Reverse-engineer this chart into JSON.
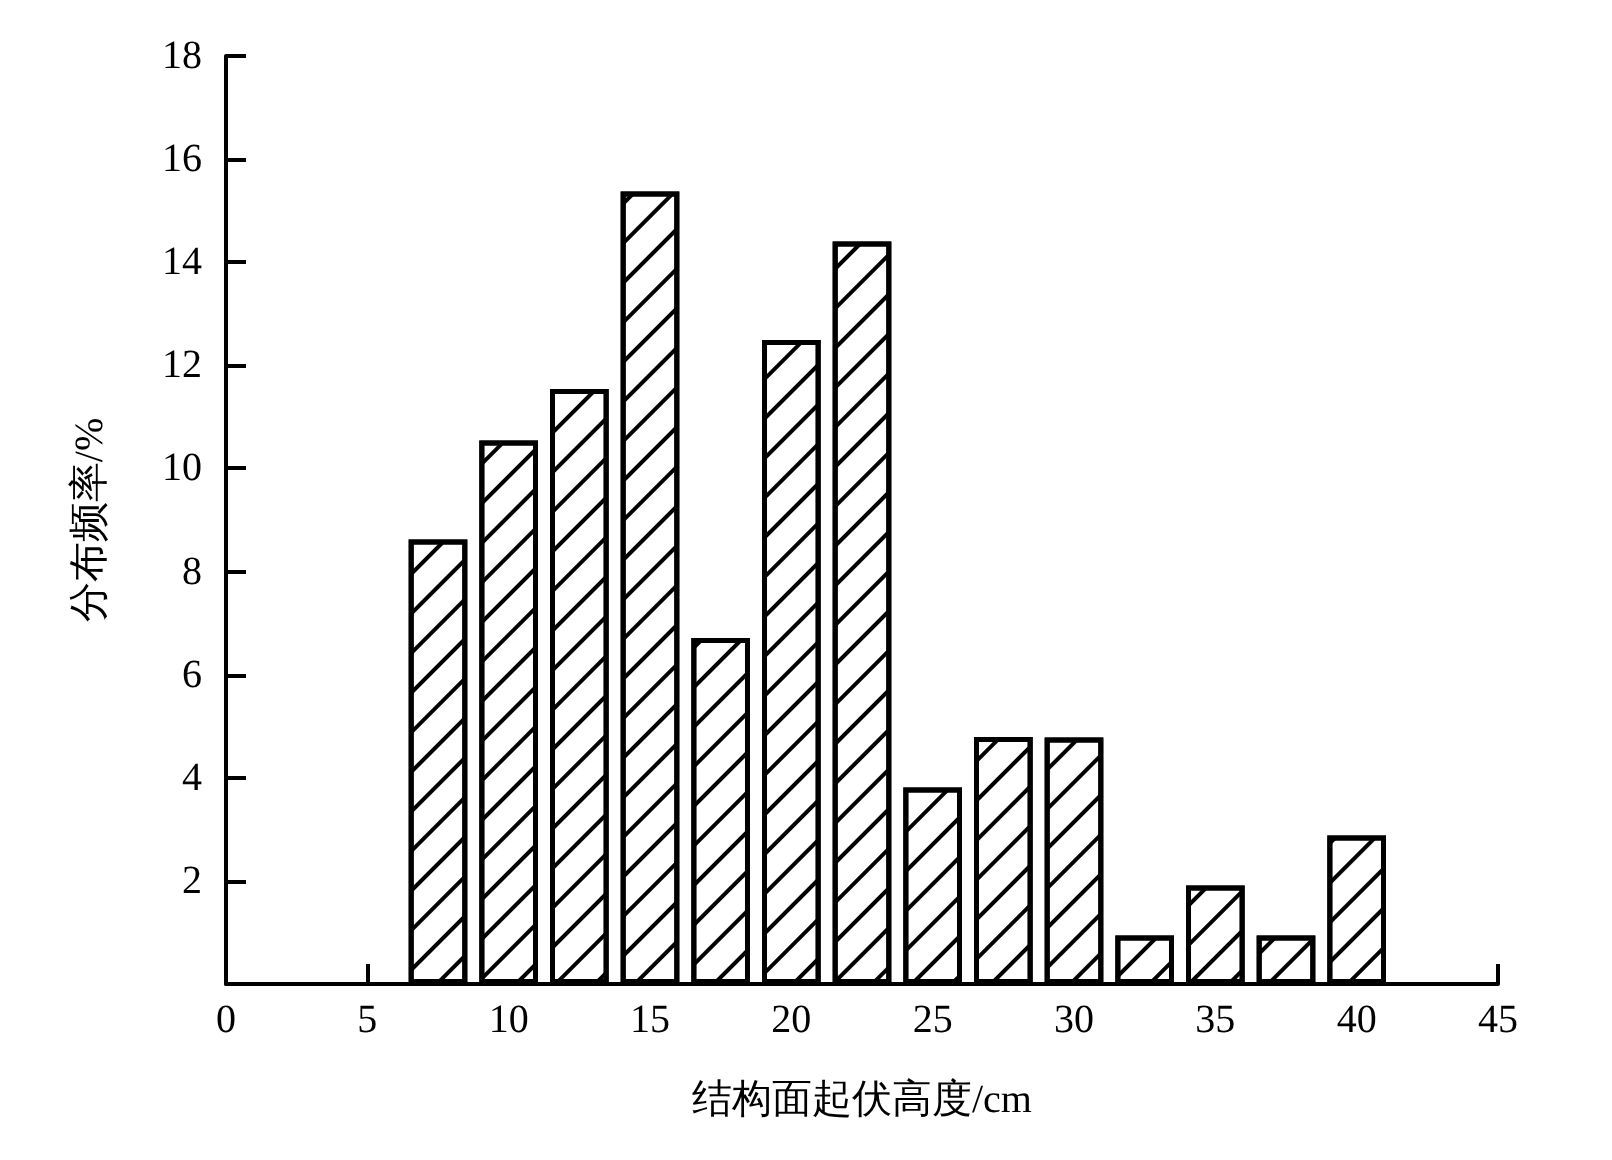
{
  "chart_data": {
    "type": "bar",
    "xlabel": "结构面起伏高度/cm",
    "ylabel": "分布频率/%",
    "x": [
      7.5,
      10,
      12.5,
      15,
      17.5,
      20,
      22.5,
      25,
      27.5,
      30,
      32.5,
      35,
      37.5,
      40
    ],
    "values": [
      8.62,
      10.54,
      11.54,
      15.37,
      6.71,
      12.49,
      14.4,
      3.81,
      4.79,
      4.78,
      0.94,
      1.91,
      0.94,
      2.88
    ],
    "color": "#000000",
    "xlim": [
      0,
      45
    ],
    "xticks": [
      0,
      5,
      10,
      15,
      20,
      25,
      30,
      35,
      40,
      45
    ],
    "ylim": [
      0,
      18
    ],
    "yticks": [
      {
        "value": 0,
        "label": null
      },
      2,
      4,
      6,
      8,
      10,
      12,
      14,
      16,
      18
    ],
    "tick_labels": true
  }
}
